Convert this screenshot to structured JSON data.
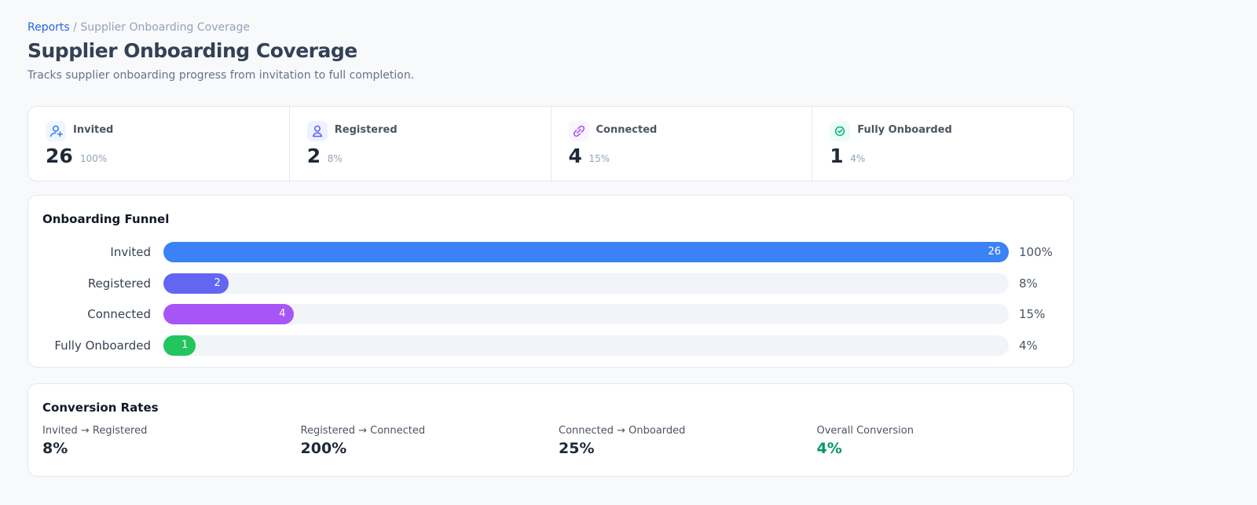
{
  "breadcrumb": {
    "link": "Reports",
    "separator": "/",
    "current": "Supplier Onboarding Coverage"
  },
  "header": {
    "title": "Supplier Onboarding Coverage",
    "subtitle": "Tracks supplier onboarding progress from invitation to full completion."
  },
  "stats": [
    {
      "label": "Invited",
      "value": "26",
      "percent": "100%"
    },
    {
      "label": "Registered",
      "value": "2",
      "percent": "8%"
    },
    {
      "label": "Connected",
      "value": "4",
      "percent": "15%"
    },
    {
      "label": "Fully Onboarded",
      "value": "1",
      "percent": "4%"
    }
  ],
  "funnel": {
    "title": "Onboarding Funnel",
    "stages": [
      {
        "label": "Invited",
        "value": 26,
        "percent": "100%",
        "color": "#3b82f6"
      },
      {
        "label": "Registered",
        "value": 2,
        "percent": "8%",
        "color": "#6366f1"
      },
      {
        "label": "Connected",
        "value": 4,
        "percent": "15%",
        "color": "#a855f7"
      },
      {
        "label": "Fully Onboarded",
        "value": 1,
        "percent": "4%",
        "color": "#22c55e"
      }
    ]
  },
  "conversion": {
    "title": "Conversion Rates",
    "items": [
      {
        "label": "Invited → Registered",
        "value": "8%"
      },
      {
        "label": "Registered → Connected",
        "value": "200%"
      },
      {
        "label": "Connected → Onboarded",
        "value": "25%"
      },
      {
        "label": "Overall Conversion",
        "value": "4%"
      }
    ]
  }
}
